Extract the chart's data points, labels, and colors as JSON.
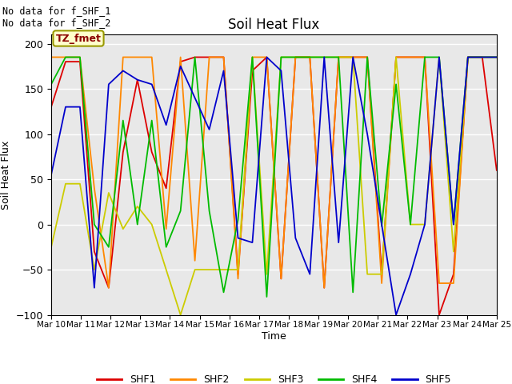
{
  "title": "Soil Heat Flux",
  "ylabel": "Soil Heat Flux",
  "xlabel": "Time",
  "ylim": [
    -100,
    210
  ],
  "yticks": [
    -100,
    -50,
    0,
    50,
    100,
    150,
    200
  ],
  "annotation_text": "No data for f_SHF_1\nNo data for f_SHF_2",
  "box_label": "TZ_fmet",
  "series_colors": {
    "SHF1": "#dd0000",
    "SHF2": "#ff8800",
    "SHF3": "#cccc00",
    "SHF4": "#00bb00",
    "SHF5": "#0000cc"
  },
  "xtick_labels": [
    "Mar 10",
    "Mar 11",
    "Mar 12",
    "Mar 13",
    "Mar 14",
    "Mar 15",
    "Mar 16",
    "Mar 17",
    "Mar 18",
    "Mar 19",
    "Mar 20",
    "Mar 21",
    "Mar 22",
    "Mar 23",
    "Mar 24",
    "Mar 25"
  ],
  "SHF1": [
    130,
    180,
    180,
    -30,
    -70,
    80,
    160,
    80,
    40,
    180,
    185,
    185,
    185,
    -55,
    170,
    185,
    -60,
    185,
    185,
    -70,
    185,
    185,
    185,
    -55,
    185,
    185,
    185,
    -100,
    -55,
    185,
    185,
    60
  ],
  "SHF2": [
    185,
    185,
    185,
    40,
    -70,
    185,
    185,
    185,
    -5,
    185,
    -40,
    185,
    185,
    -60,
    185,
    185,
    -60,
    185,
    185,
    -70,
    185,
    185,
    185,
    -65,
    185,
    185,
    185,
    -65,
    -65,
    185,
    185,
    185
  ],
  "SHF3": [
    -25,
    45,
    45,
    -50,
    35,
    -5,
    20,
    0,
    -50,
    -100,
    -50,
    -50,
    -50,
    -50,
    185,
    -55,
    185,
    185,
    185,
    185,
    185,
    185,
    -55,
    -55,
    185,
    0,
    0,
    185,
    -30,
    185,
    185,
    185
  ],
  "SHF4": [
    155,
    185,
    185,
    0,
    -25,
    115,
    0,
    115,
    -25,
    15,
    185,
    15,
    -75,
    5,
    185,
    -80,
    185,
    185,
    185,
    185,
    185,
    -75,
    185,
    -2,
    155,
    0,
    185,
    185,
    0,
    185,
    185,
    185
  ],
  "SHF5": [
    55,
    130,
    130,
    -70,
    155,
    170,
    160,
    155,
    110,
    175,
    140,
    105,
    170,
    -15,
    -20,
    185,
    170,
    -15,
    -55,
    185,
    -20,
    185,
    100,
    0,
    -100,
    -55,
    0,
    185,
    0,
    185,
    185,
    185
  ],
  "n_points": 32,
  "n_days": 15,
  "background_color": "#e8e8e8",
  "grid_color": "white",
  "legend_colors": [
    "#dd0000",
    "#ff8800",
    "#cccc00",
    "#00bb00",
    "#0000cc"
  ],
  "legend_labels": [
    "SHF1",
    "SHF2",
    "SHF3",
    "SHF4",
    "SHF5"
  ]
}
